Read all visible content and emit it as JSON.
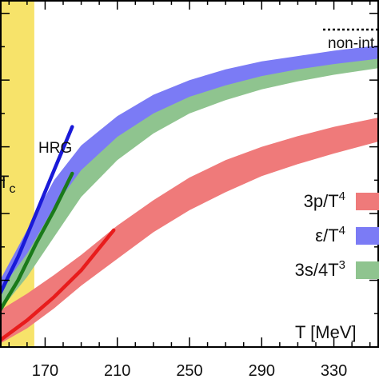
{
  "chart_data": {
    "type": "area",
    "xlabel": "T [MeV]",
    "xlim": [
      145,
      355
    ],
    "ylim": [
      0,
      5.2
    ],
    "x_ticks": [
      170,
      210,
      250,
      290,
      330
    ],
    "x_tick_labels": [
      "170",
      "210",
      "250",
      "290",
      "330"
    ],
    "grid": false,
    "legend_position": "right",
    "tc_band": {
      "label": "T",
      "subscript": "c",
      "x_range": [
        145,
        164
      ],
      "color": "#f7e36a"
    },
    "series": [
      {
        "name": "3p/T⁴",
        "name_main": "3p/T",
        "name_sup": "4",
        "color": "#ef7a7a",
        "x": [
          145,
          160,
          175,
          190,
          210,
          230,
          250,
          270,
          290,
          310,
          330,
          355
        ],
        "lower": [
          0.05,
          0.28,
          0.58,
          0.92,
          1.32,
          1.72,
          2.05,
          2.32,
          2.56,
          2.74,
          2.9,
          3.08
        ],
        "upper": [
          0.55,
          0.8,
          1.08,
          1.38,
          1.82,
          2.2,
          2.54,
          2.8,
          3.0,
          3.16,
          3.3,
          3.44
        ]
      },
      {
        "name": "ε/T⁴",
        "name_main": "ε/T",
        "name_sup": "4",
        "color": "#7b7bf5",
        "x": [
          145,
          160,
          175,
          190,
          210,
          230,
          250,
          270,
          290,
          310,
          330,
          355
        ],
        "lower": [
          0.7,
          1.35,
          2.05,
          2.62,
          3.1,
          3.45,
          3.72,
          3.9,
          4.04,
          4.14,
          4.22,
          4.32
        ],
        "upper": [
          1.0,
          1.75,
          2.5,
          3.02,
          3.46,
          3.78,
          4.0,
          4.16,
          4.28,
          4.36,
          4.44,
          4.52
        ]
      },
      {
        "name": "3s/4T³",
        "name_main": "3s/4T",
        "name_sup": "3",
        "color": "#8fc48f",
        "x": [
          145,
          160,
          175,
          190,
          210,
          230,
          250,
          270,
          290,
          310,
          330,
          355
        ],
        "lower": [
          0.55,
          1.05,
          1.65,
          2.25,
          2.8,
          3.2,
          3.5,
          3.7,
          3.86,
          3.98,
          4.08,
          4.18
        ],
        "upper": [
          0.85,
          1.4,
          2.1,
          2.65,
          3.15,
          3.5,
          3.75,
          3.92,
          4.06,
          4.16,
          4.24,
          4.32
        ]
      }
    ],
    "hrg": {
      "label": "HRG",
      "curves": [
        {
          "match": "ε/T⁴",
          "color": "#1a1ad8",
          "x": [
            145,
            155,
            165,
            175,
            185
          ],
          "y": [
            0.8,
            1.35,
            2.0,
            2.65,
            3.3
          ]
        },
        {
          "match": "3s/4T³",
          "color": "#1a7a1a",
          "x": [
            145,
            155,
            165,
            175,
            185
          ],
          "y": [
            0.55,
            1.0,
            1.55,
            2.05,
            2.6
          ]
        },
        {
          "match": "3p/T⁴",
          "color": "#e81c1c",
          "x": [
            145,
            160,
            175,
            190,
            208
          ],
          "y": [
            0.1,
            0.4,
            0.75,
            1.15,
            1.75
          ]
        }
      ]
    },
    "reference": {
      "label": "non-interacting",
      "visible_label": "non-int",
      "style": "dotted",
      "color": "#000000"
    }
  }
}
